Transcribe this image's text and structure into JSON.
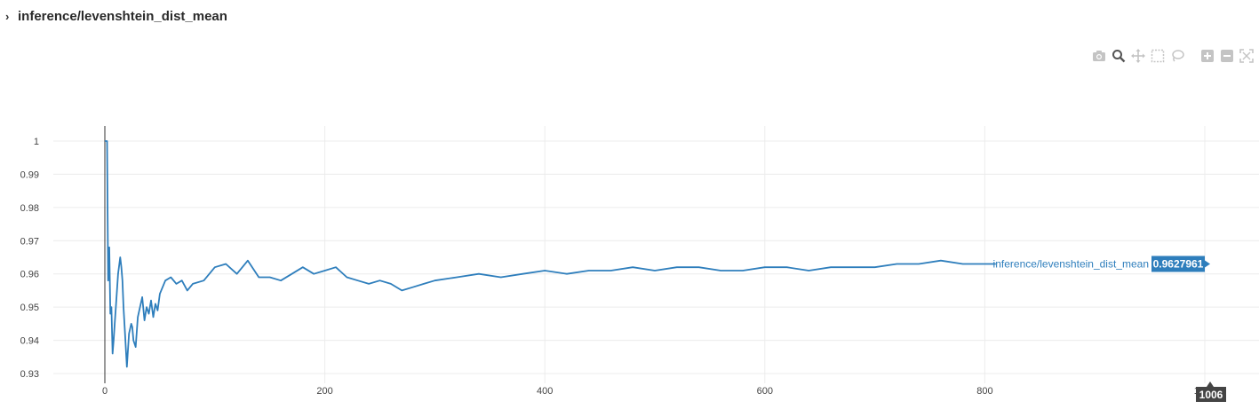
{
  "header": {
    "title": "inference/levenshtein_dist_mean"
  },
  "modebar": {
    "buttons": [
      {
        "name": "camera-icon"
      },
      {
        "name": "zoom-icon"
      },
      {
        "name": "pan-icon"
      },
      {
        "name": "box-select-icon"
      },
      {
        "name": "lasso-select-icon"
      },
      {
        "name": "zoom-in-icon"
      },
      {
        "name": "zoom-out-icon"
      },
      {
        "name": "autoscale-icon"
      }
    ]
  },
  "chart_data": {
    "type": "line",
    "series": [
      {
        "name": "inference/levenshtein_dist_mean",
        "color": "#2e7ebc",
        "x": [
          0,
          2,
          3,
          4,
          5,
          6,
          7,
          8,
          9,
          10,
          12,
          14,
          15,
          16,
          17,
          18,
          20,
          22,
          24,
          25,
          26,
          28,
          30,
          32,
          34,
          36,
          38,
          40,
          42,
          44,
          46,
          48,
          50,
          55,
          60,
          65,
          70,
          75,
          80,
          90,
          100,
          110,
          120,
          130,
          140,
          150,
          160,
          170,
          180,
          190,
          200,
          210,
          220,
          230,
          240,
          250,
          260,
          270,
          280,
          290,
          300,
          320,
          340,
          360,
          380,
          400,
          420,
          440,
          460,
          480,
          500,
          520,
          540,
          560,
          580,
          600,
          620,
          640,
          660,
          680,
          700,
          720,
          740,
          760,
          780,
          800,
          810
        ],
        "y": [
          1.0,
          1.0,
          0.958,
          0.968,
          0.948,
          0.95,
          0.936,
          0.94,
          0.945,
          0.95,
          0.96,
          0.965,
          0.962,
          0.958,
          0.95,
          0.944,
          0.932,
          0.942,
          0.945,
          0.944,
          0.94,
          0.938,
          0.947,
          0.95,
          0.953,
          0.946,
          0.95,
          0.948,
          0.952,
          0.947,
          0.951,
          0.949,
          0.954,
          0.958,
          0.959,
          0.957,
          0.958,
          0.955,
          0.957,
          0.958,
          0.962,
          0.963,
          0.96,
          0.964,
          0.959,
          0.959,
          0.958,
          0.96,
          0.962,
          0.96,
          0.961,
          0.962,
          0.959,
          0.958,
          0.957,
          0.958,
          0.957,
          0.955,
          0.956,
          0.957,
          0.958,
          0.959,
          0.96,
          0.959,
          0.96,
          0.961,
          0.96,
          0.961,
          0.961,
          0.962,
          0.961,
          0.962,
          0.962,
          0.961,
          0.961,
          0.962,
          0.962,
          0.961,
          0.962,
          0.962,
          0.962,
          0.963,
          0.963,
          0.964,
          0.963,
          0.963,
          0.963
        ]
      }
    ],
    "xticks": [
      0,
      200,
      400,
      600,
      800,
      1000
    ],
    "xtick_labels": [
      "0",
      "200",
      "400",
      "600",
      "800",
      "1000"
    ],
    "yticks": [
      0.93,
      0.94,
      0.95,
      0.96,
      0.97,
      0.98,
      0.99,
      1
    ],
    "ytick_labels": [
      "0.93",
      "0.94",
      "0.95",
      "0.96",
      "0.97",
      "0.98",
      "0.99",
      "1"
    ],
    "xlim": [
      -90,
      1050
    ],
    "ylim": [
      0.929,
      1.005
    ],
    "grid": true,
    "hover": {
      "series_label": "inference/levenshtein_dist_mean",
      "value_label": "0.9627961",
      "x_label": "1006"
    }
  }
}
